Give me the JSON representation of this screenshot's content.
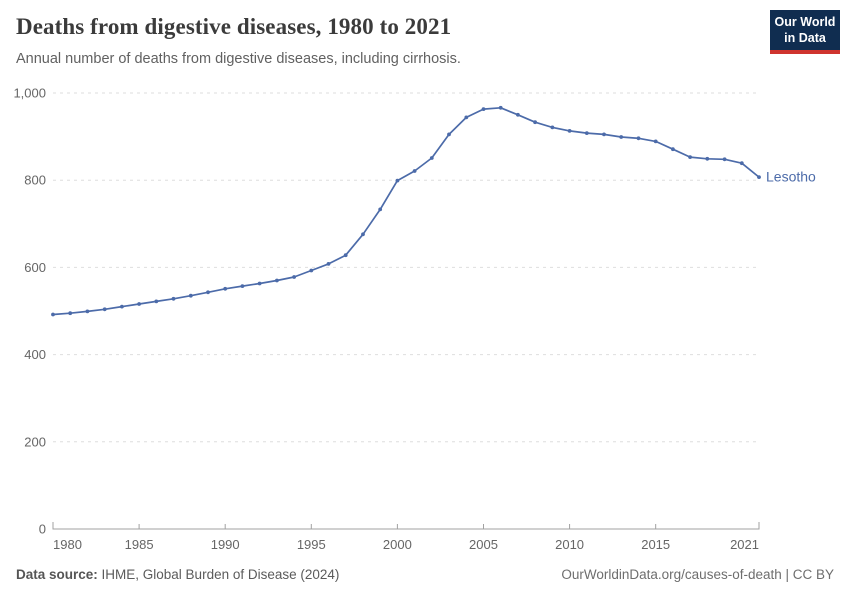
{
  "header": {
    "title": "Deaths from digestive diseases, 1980 to 2021",
    "subtitle": "Annual number of deaths from digestive diseases, including cirrhosis.",
    "logo": {
      "line1": "Our World",
      "line2": "in Data"
    }
  },
  "chart_data": {
    "type": "line",
    "title": "Deaths from digestive diseases, 1980 to 2021",
    "xlabel": "",
    "ylabel": "",
    "xlim": [
      1980,
      2021
    ],
    "ylim": [
      0,
      1000
    ],
    "grid": "horizontal-dashed",
    "legend_position": "end-of-line-label",
    "end_label": "Lesotho",
    "x": [
      1980,
      1981,
      1982,
      1983,
      1984,
      1985,
      1986,
      1987,
      1988,
      1989,
      1990,
      1991,
      1992,
      1993,
      1994,
      1995,
      1996,
      1997,
      1998,
      1999,
      2000,
      2001,
      2002,
      2003,
      2004,
      2005,
      2006,
      2007,
      2008,
      2009,
      2010,
      2011,
      2012,
      2013,
      2014,
      2015,
      2016,
      2017,
      2018,
      2019,
      2020,
      2021
    ],
    "series": [
      {
        "name": "Lesotho",
        "color": "#4c6ba9",
        "values": [
          492,
          495,
          499,
          504,
          510,
          516,
          522,
          528,
          535,
          543,
          551,
          557,
          563,
          570,
          578,
          593,
          608,
          628,
          676,
          733,
          799,
          821,
          851,
          905,
          944,
          963,
          966,
          950,
          933,
          921,
          913,
          908,
          905,
          899,
          896,
          889,
          871,
          853,
          849,
          848,
          839,
          807
        ]
      }
    ],
    "x_ticks": [
      1980,
      1985,
      1990,
      1995,
      2000,
      2005,
      2010,
      2015,
      2021
    ],
    "y_ticks": [
      {
        "value": 0,
        "label": "0"
      },
      {
        "value": 200,
        "label": "200"
      },
      {
        "value": 400,
        "label": "400"
      },
      {
        "value": 600,
        "label": "600"
      },
      {
        "value": 800,
        "label": "800"
      },
      {
        "value": 1000,
        "label": "1,000"
      }
    ]
  },
  "footer": {
    "source_label": "Data source:",
    "source_rest": " IHME, Global Burden of Disease (2024)",
    "credit": "OurWorldinData.org/causes-of-death | CC BY"
  },
  "colors": {
    "line": "#4c6ba9",
    "end_label": "#4c6ba9",
    "grid": "#dedede",
    "axis": "#a1a1a1",
    "tick_label": "#666666",
    "logo_navy": "#102d50",
    "logo_red": "#cf342e"
  }
}
